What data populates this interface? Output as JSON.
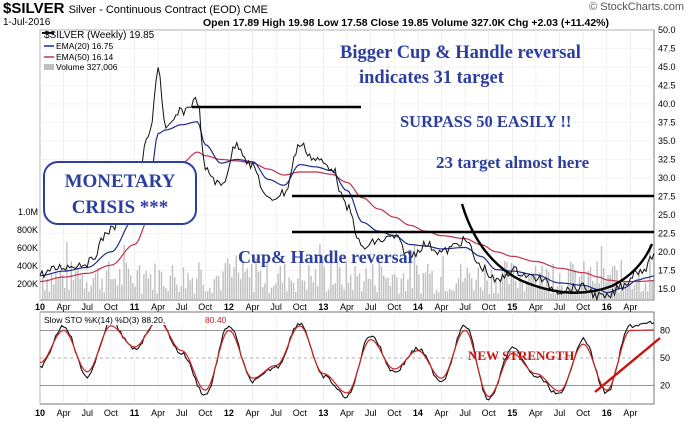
{
  "header": {
    "symbol": "$SILVER",
    "description": "Silver - Continuous Contract (EOD) CME",
    "date": "1-Jul-2016",
    "ohlc": "Open 17.89  High 19.98  Low 17.58  Close 19.85  Volume 327.0K  Chg +2.03 (+11.42%)",
    "brand": "© StockCharts.com"
  },
  "legend": {
    "price": "$SILVER (Weekly) 19.85",
    "ema20": "EMA(20) 16.75",
    "ema50": "EMA(50) 16.14",
    "volume": "Volume 327,006"
  },
  "stoch_legend": {
    "label": "Slow STO %K(14) %D(3) 88.20,",
    "value": "80.40"
  },
  "annotations": {
    "cup_title_1": "Bigger Cup & Handle reversal",
    "cup_title_2": "indicates 31 target",
    "surpass": "SURPASS 50 EASILY !!",
    "target23": "23 target almost here",
    "monetary_1": "MONETARY",
    "monetary_2": "CRISIS ***",
    "cup_handle": "Cup& Handle reversal",
    "new_strength": "NEW STRENGTH"
  },
  "colors": {
    "price": "#111111",
    "ema20": "#1d2a8c",
    "ema50": "#c0334a",
    "volume": "#bfbfbf",
    "stoch_k": "#111111",
    "stoch_d": "#cc2222",
    "annotation": "#2c3e9e",
    "new_strength": "#cc1111"
  },
  "chart_data": [
    {
      "type": "line",
      "series_label": "$SILVER (Weekly)",
      "x_ticks": [
        "10",
        "Apr",
        "Jul",
        "Oct",
        "11",
        "Apr",
        "Jul",
        "Oct",
        "12",
        "Apr",
        "Jul",
        "Oct",
        "13",
        "Apr",
        "Jul",
        "Oct",
        "14",
        "Apr",
        "Jul",
        "Oct",
        "15",
        "Apr",
        "Jul",
        "Oct",
        "16",
        "Apr"
      ],
      "y_ticks": [
        "50.0",
        "47.5",
        "45.0",
        "42.5",
        "40.0",
        "37.5",
        "35.0",
        "32.5",
        "30.0",
        "27.5",
        "25.0",
        "22.5",
        "20.0",
        "17.5",
        "15.0"
      ],
      "volume_ticks": [
        "1.0M",
        "800K",
        "600K",
        "400K",
        "200K"
      ],
      "ylim": [
        13.5,
        50
      ],
      "x": [
        "2010-01",
        "2010-04",
        "2010-07",
        "2010-10",
        "2011-01",
        "2011-03",
        "2011-04",
        "2011-05",
        "2011-07",
        "2011-09",
        "2011-10",
        "2011-12",
        "2012-02",
        "2012-04",
        "2012-06",
        "2012-08",
        "2012-10",
        "2012-12",
        "2013-02",
        "2013-04",
        "2013-06",
        "2013-08",
        "2013-10",
        "2013-12",
        "2014-02",
        "2014-04",
        "2014-07",
        "2014-09",
        "2014-11",
        "2015-01",
        "2015-04",
        "2015-07",
        "2015-10",
        "2015-12",
        "2016-01",
        "2016-03",
        "2016-05",
        "2016-06",
        "2016-07"
      ],
      "series": [
        {
          "name": "$SILVER (Weekly)",
          "values": [
            17.0,
            18.0,
            18.5,
            23.0,
            28.5,
            36.0,
            45.0,
            36.5,
            39.0,
            40.5,
            31.0,
            29.0,
            34.5,
            31.5,
            27.0,
            28.0,
            34.5,
            32.5,
            31.5,
            26.0,
            20.5,
            21.5,
            22.0,
            19.5,
            21.0,
            20.0,
            21.5,
            18.0,
            16.0,
            17.5,
            16.5,
            14.8,
            15.2,
            14.0,
            13.8,
            15.5,
            17.5,
            17.8,
            19.85
          ]
        },
        {
          "name": "EMA(20)",
          "values": [
            16.8,
            17.4,
            17.9,
            20.0,
            24.5,
            30.0,
            36.0,
            36.5,
            37.2,
            37.6,
            34.5,
            32.0,
            32.5,
            32.2,
            29.8,
            29.0,
            31.8,
            31.5,
            31.0,
            28.3,
            24.0,
            22.8,
            22.2,
            21.0,
            20.8,
            20.4,
            20.6,
            19.4,
            17.6,
            17.4,
            16.9,
            15.8,
            15.5,
            14.9,
            14.5,
            15.1,
            16.2,
            16.5,
            16.75
          ]
        },
        {
          "name": "EMA(50)",
          "values": [
            16.0,
            16.6,
            17.1,
            18.2,
            21.0,
            24.8,
            28.8,
            30.5,
            32.0,
            33.5,
            33.0,
            32.5,
            32.3,
            32.0,
            31.2,
            30.4,
            30.8,
            30.8,
            30.5,
            29.4,
            27.3,
            25.8,
            24.7,
            23.6,
            22.8,
            22.2,
            21.8,
            21.0,
            20.0,
            19.4,
            18.7,
            17.8,
            17.2,
            16.6,
            16.2,
            16.0,
            16.0,
            16.05,
            16.14
          ]
        }
      ]
    },
    {
      "type": "line",
      "series_label": "Slow STO %K(14) %D(3)",
      "y_ticks": [
        "80",
        "50",
        "20"
      ],
      "ylim": [
        0,
        100
      ],
      "x": [
        "2010-01",
        "2010-04",
        "2010-07",
        "2010-10",
        "2011-01",
        "2011-04",
        "2011-07",
        "2011-10",
        "2012-01",
        "2012-04",
        "2012-07",
        "2012-10",
        "2013-01",
        "2013-04",
        "2013-07",
        "2013-10",
        "2014-01",
        "2014-04",
        "2014-07",
        "2014-10",
        "2015-01",
        "2015-04",
        "2015-07",
        "2015-10",
        "2016-01",
        "2016-04",
        "2016-07"
      ],
      "series": [
        {
          "name": "%K",
          "values": [
            40,
            85,
            30,
            88,
            60,
            92,
            55,
            10,
            85,
            25,
            40,
            88,
            30,
            8,
            75,
            35,
            60,
            25,
            85,
            5,
            60,
            30,
            10,
            70,
            12,
            85,
            88.2
          ]
        },
        {
          "name": "%D",
          "values": [
            45,
            80,
            35,
            85,
            62,
            90,
            58,
            15,
            80,
            28,
            42,
            85,
            33,
            12,
            70,
            38,
            58,
            28,
            80,
            8,
            55,
            33,
            14,
            65,
            15,
            80,
            80.4
          ]
        }
      ]
    }
  ]
}
